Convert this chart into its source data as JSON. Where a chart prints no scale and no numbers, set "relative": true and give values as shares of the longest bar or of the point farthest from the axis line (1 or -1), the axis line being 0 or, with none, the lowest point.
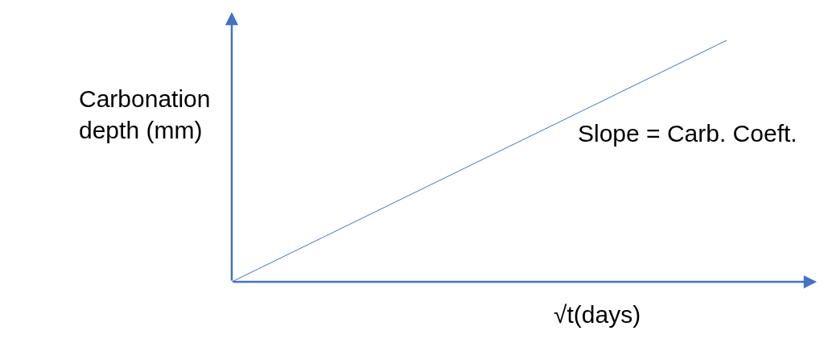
{
  "chart_data": {
    "type": "line",
    "categories": [
      null,
      null
    ],
    "values": [
      0,
      1
    ],
    "color": "#4472c4",
    "relative": true,
    "line_style": "solid",
    "xlabel": "√t(days)",
    "ylabel": "Carbonation\ndepth (mm)",
    "annotations": [
      "Slope = Carb. Coeft."
    ]
  }
}
